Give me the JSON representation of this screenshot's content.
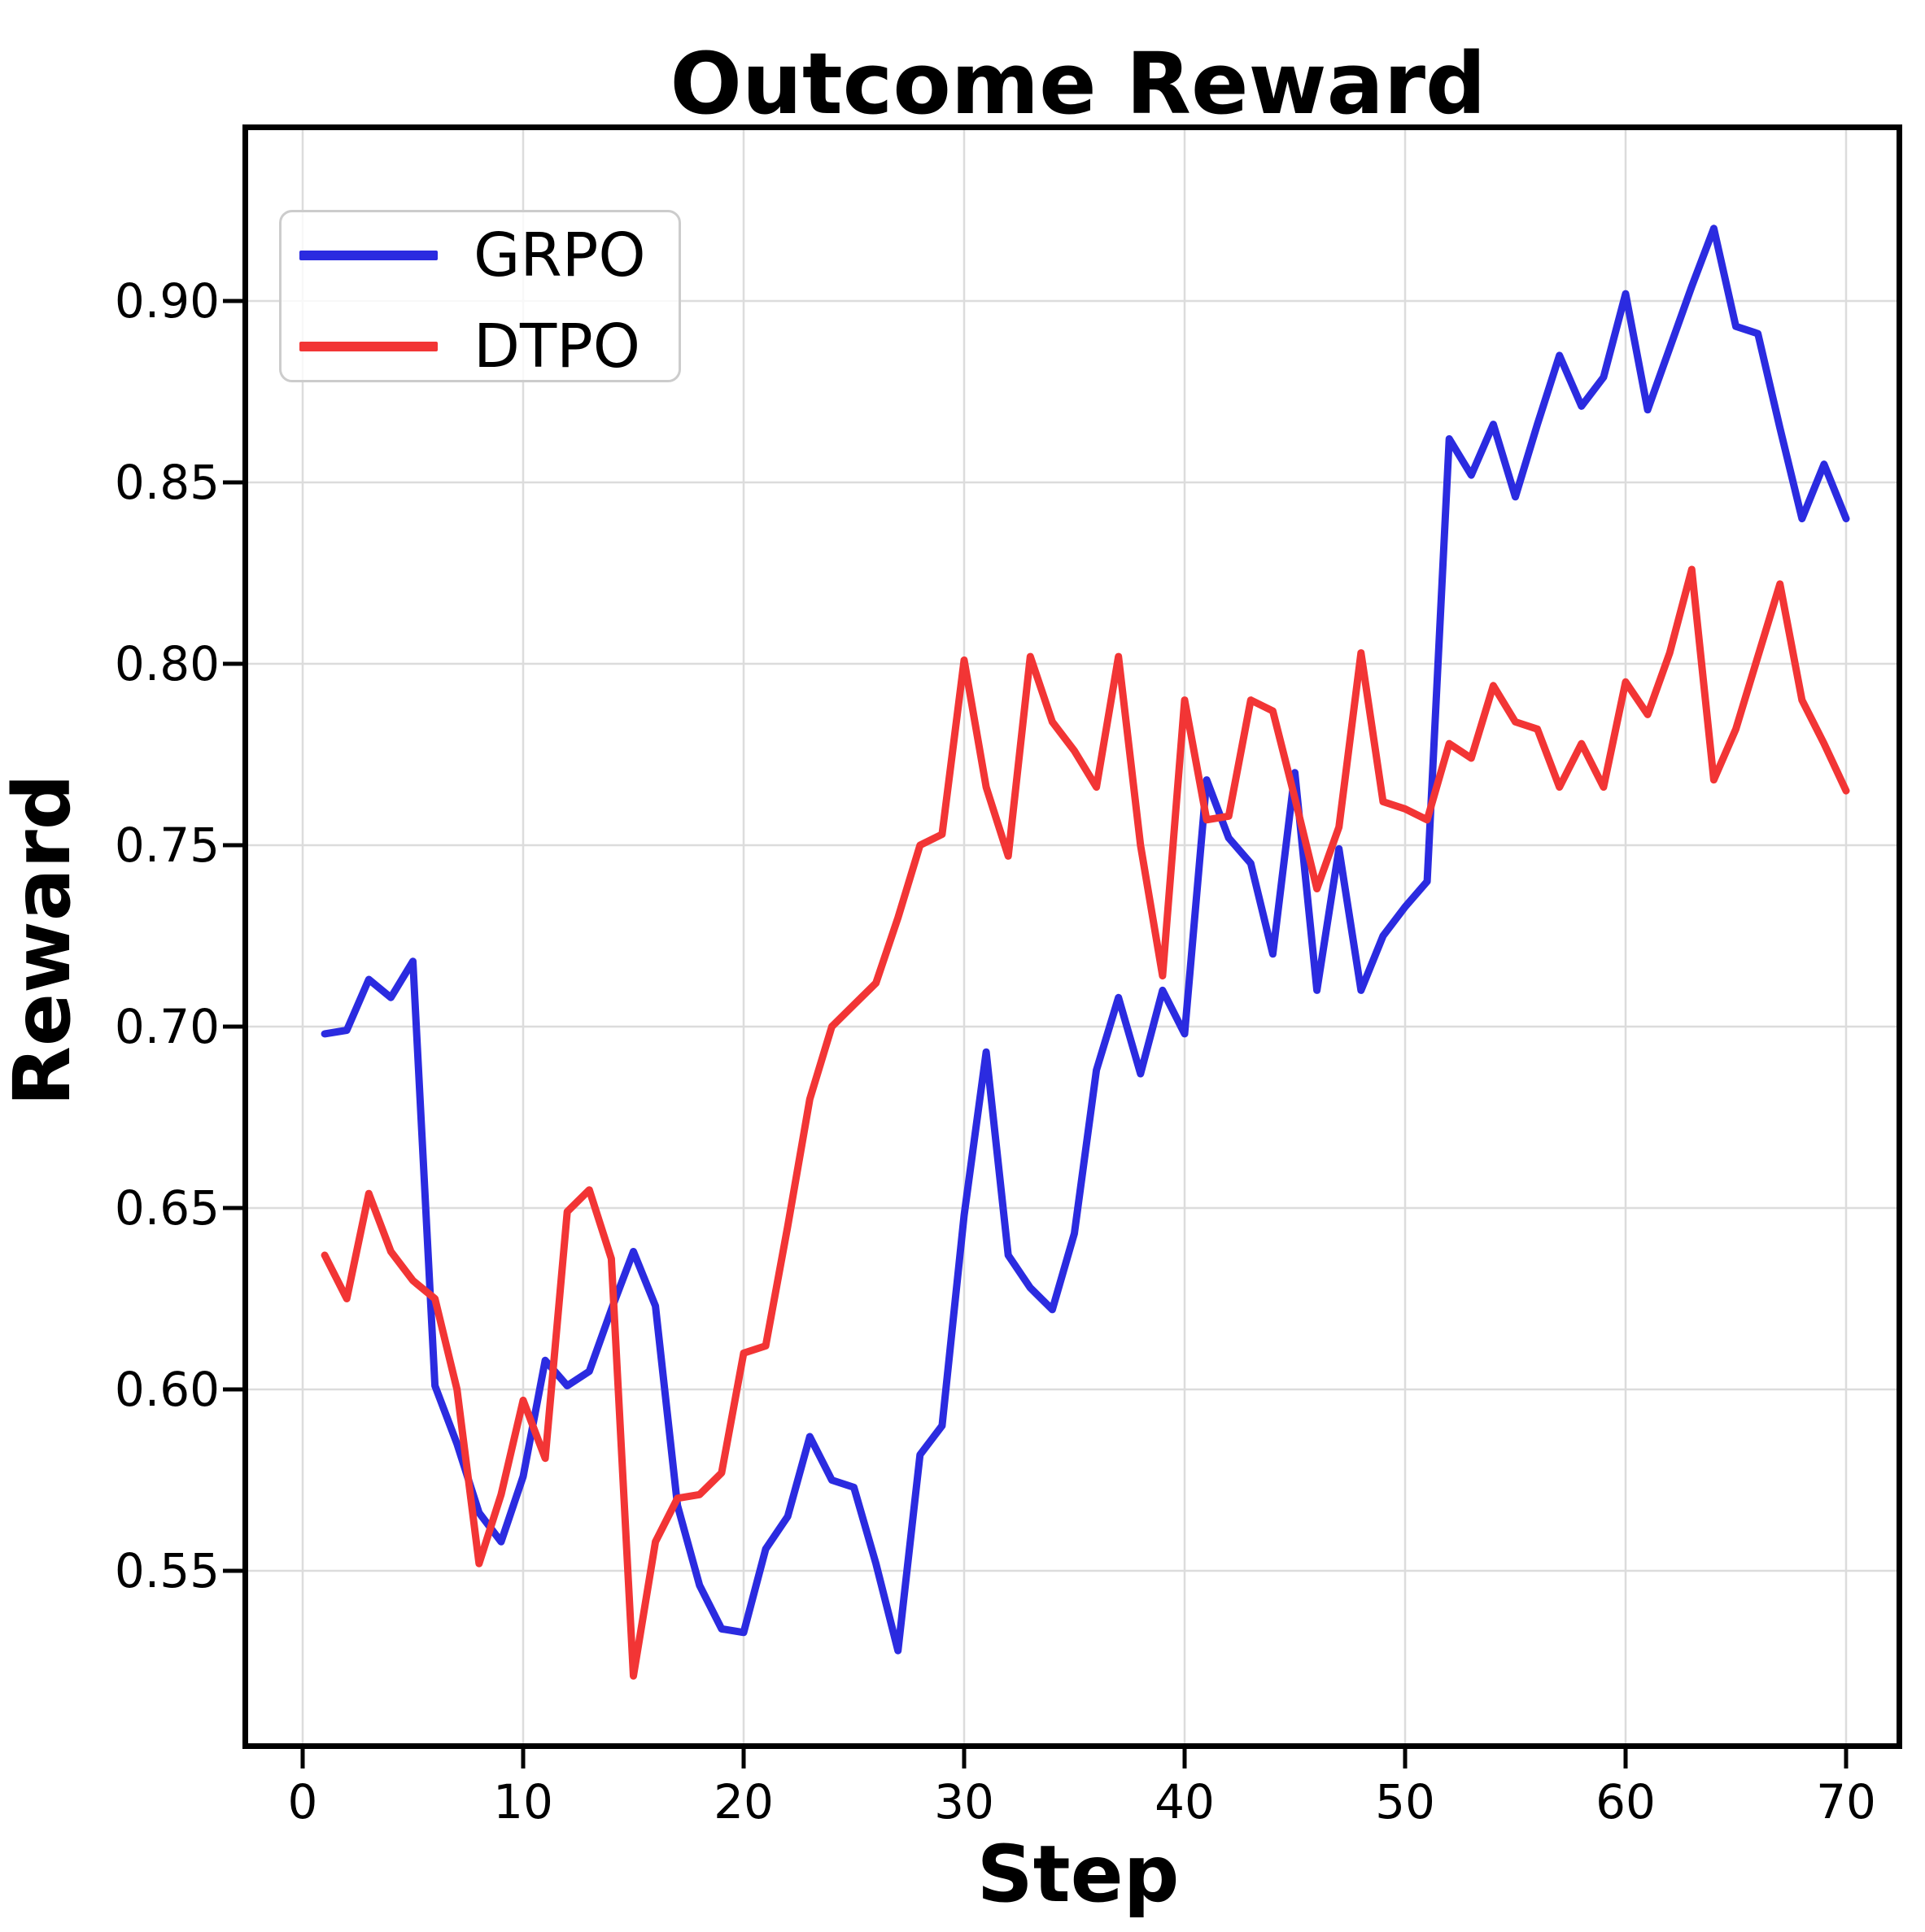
{
  "chart_data": {
    "type": "line",
    "title": "Outcome Reward",
    "xlabel": "Step",
    "ylabel": "Reward",
    "grid": true,
    "legend_position": "upper left",
    "xlim": [
      -2.7,
      72.6
    ],
    "ylim": [
      0.502,
      0.948
    ],
    "xticks": [
      0,
      10,
      20,
      30,
      40,
      50,
      60,
      70
    ],
    "ytick_labels": [
      "0.55",
      "0.60",
      "0.65",
      "0.70",
      "0.75",
      "0.80",
      "0.85",
      "0.90"
    ],
    "yticks": [
      0.55,
      0.6,
      0.65,
      0.7,
      0.75,
      0.8,
      0.85,
      0.9
    ],
    "x": [
      1,
      2,
      3,
      4,
      5,
      6,
      7,
      8,
      9,
      10,
      11,
      12,
      13,
      14,
      15,
      16,
      17,
      18,
      19,
      20,
      21,
      22,
      23,
      24,
      25,
      26,
      27,
      28,
      29,
      30,
      31,
      32,
      33,
      34,
      35,
      36,
      37,
      38,
      39,
      40,
      41,
      42,
      43,
      44,
      45,
      46,
      47,
      48,
      49,
      50,
      51,
      52,
      53,
      54,
      55,
      56,
      57,
      58,
      59,
      60,
      61,
      62,
      63,
      64,
      65,
      66,
      67,
      68,
      69,
      70
    ],
    "series": [
      {
        "name": "GRPO",
        "color": "#2b2be0",
        "values": [
          0.698,
          0.699,
          0.713,
          0.708,
          0.718,
          0.601,
          0.585,
          0.566,
          0.558,
          0.576,
          0.608,
          0.601,
          0.605,
          0.622,
          0.638,
          0.623,
          0.568,
          0.546,
          0.534,
          0.533,
          0.556,
          0.565,
          0.587,
          0.575,
          0.573,
          0.552,
          0.528,
          0.582,
          0.59,
          0.648,
          0.693,
          0.637,
          0.628,
          0.622,
          0.643,
          0.688,
          0.708,
          0.687,
          0.71,
          0.698,
          0.768,
          0.752,
          0.745,
          0.72,
          0.77,
          0.71,
          0.749,
          0.71,
          0.725,
          0.733,
          0.74,
          0.862,
          0.852,
          0.866,
          0.846,
          0.866,
          0.885,
          0.871,
          0.879,
          0.902,
          0.87,
          0.887,
          0.904,
          0.92,
          0.893,
          0.891,
          0.865,
          0.84,
          0.855,
          0.84
        ]
      },
      {
        "name": "DTPO",
        "color": "#f23535",
        "values": [
          0.637,
          0.625,
          0.654,
          0.638,
          0.63,
          0.625,
          0.6,
          0.552,
          0.571,
          0.597,
          0.581,
          0.649,
          0.655,
          0.636,
          0.521,
          0.558,
          0.57,
          0.571,
          0.577,
          0.61,
          0.612,
          0.645,
          0.68,
          0.7,
          0.706,
          0.712,
          0.73,
          0.75,
          0.753,
          0.801,
          0.766,
          0.747,
          0.802,
          0.784,
          0.776,
          0.766,
          0.802,
          0.75,
          0.714,
          0.79,
          0.757,
          0.758,
          0.79,
          0.787,
          0.763,
          0.738,
          0.755,
          0.803,
          0.762,
          0.76,
          0.757,
          0.778,
          0.774,
          0.794,
          0.784,
          0.782,
          0.766,
          0.778,
          0.766,
          0.795,
          0.786,
          0.803,
          0.826,
          0.768,
          0.782,
          0.802,
          0.822,
          0.79,
          0.778,
          0.765
        ]
      }
    ]
  },
  "styles": {
    "grid_color": "#dcdcdc",
    "spine_color": "#000000",
    "tick_color": "#000000",
    "background": "#ffffff",
    "line_width": 9
  }
}
